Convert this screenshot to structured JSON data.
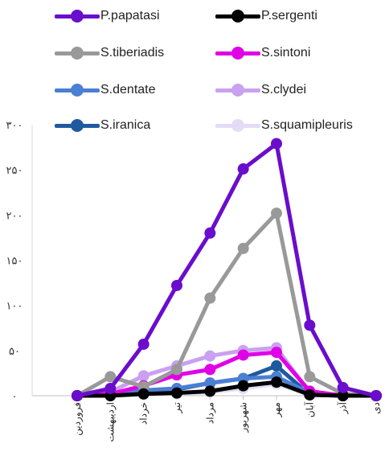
{
  "chart_data": {
    "type": "line",
    "title": "",
    "xlabel": "",
    "ylabel": "",
    "categories": [
      "فروردین",
      "اردیبهشت",
      "خرداد",
      "تیر",
      "مرداد",
      "شهریور",
      "مهر",
      "آبان",
      "آذر",
      "دی"
    ],
    "y_ticks": [
      "۰",
      "۵۰",
      "۱۰۰",
      "۱۵۰",
      "۲۰۰",
      "۲۵۰",
      "۳۰۰"
    ],
    "ylim": [
      0,
      300
    ],
    "grid": false,
    "legend": "top",
    "series": [
      {
        "name": "P.papatasi",
        "color": "#6a0dcc",
        "values": [
          0,
          8,
          57,
          122,
          180,
          251,
          279,
          78,
          9,
          0
        ]
      },
      {
        "name": "P.sergenti",
        "color": "#000000",
        "values": [
          0,
          0,
          2,
          3,
          5,
          11,
          15,
          1,
          0,
          0
        ]
      },
      {
        "name": "S.tiberiadis",
        "color": "#999999",
        "values": [
          0,
          21,
          10,
          29,
          108,
          163,
          202,
          21,
          2,
          0
        ]
      },
      {
        "name": "S.sintoni",
        "color": "#e000e6",
        "values": [
          0,
          2,
          11,
          23,
          29,
          45,
          48,
          5,
          0,
          0
        ]
      },
      {
        "name": "S.dentate",
        "color": "#4a7fd4",
        "values": [
          0,
          1,
          6,
          8,
          14,
          19,
          21,
          3,
          0,
          0
        ]
      },
      {
        "name": "S.clydei",
        "color": "#c9a1f0",
        "values": [
          0,
          4,
          22,
          33,
          44,
          50,
          53,
          3,
          0,
          0
        ]
      },
      {
        "name": "S.iranica",
        "color": "#1f5aa0",
        "values": [
          0,
          2,
          4,
          7,
          14,
          19,
          33,
          1,
          0,
          0
        ]
      },
      {
        "name": "S.squamipleuris",
        "color": "#e4dcf6",
        "values": [
          0,
          0,
          1,
          2,
          4,
          8,
          13,
          1,
          0,
          0
        ]
      }
    ]
  }
}
